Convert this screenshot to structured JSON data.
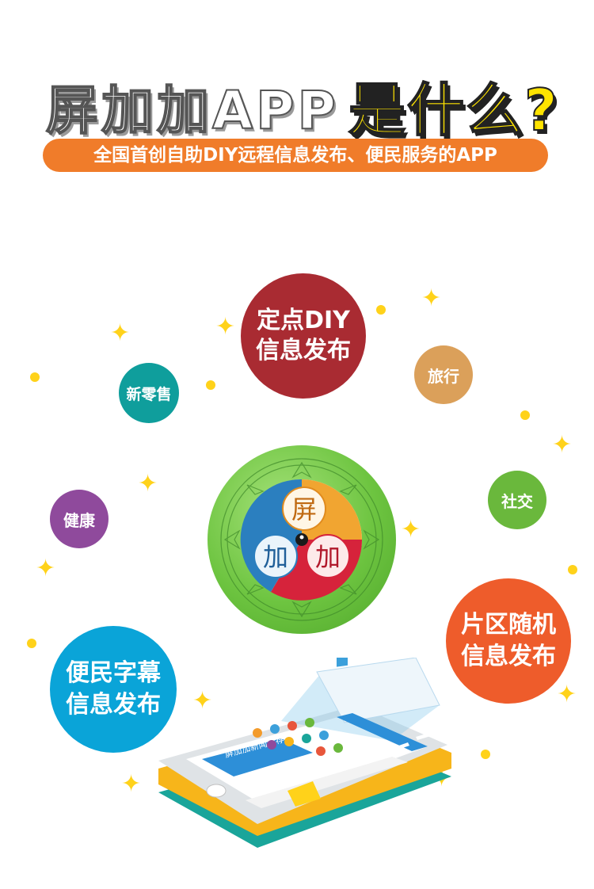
{
  "header": {
    "title_part1": "屏加加APP",
    "title_part2": "是什么?",
    "subtitle": "全国首创自助DIY远程信息发布、便民服务的APP"
  },
  "bubbles": {
    "dingdian": [
      "定点DIY",
      "信息发布"
    ],
    "xinlingshou": "新零售",
    "lvxing": "旅行",
    "jiankang": "健康",
    "shejiao": "社交",
    "pianqu": [
      "片区随机",
      "信息发布"
    ],
    "bianmin": [
      "便民字幕",
      "信息发布"
    ]
  },
  "logo_chars": [
    "屏",
    "加",
    "加"
  ],
  "phone_banner": "屏加加新闻推荐",
  "colors": {
    "title_yellow": "#ffe400",
    "subtitle_orange": "#f07c2a",
    "bubble_red": "#a92b32",
    "bubble_teal": "#0f9e9c",
    "bubble_tan": "#dba05a",
    "bubble_purple": "#8f4a9c",
    "bubble_green": "#6ab83c",
    "bubble_orange": "#ee5c2b",
    "bubble_blue": "#0aa4d8",
    "star_yellow": "#ffd21a"
  }
}
